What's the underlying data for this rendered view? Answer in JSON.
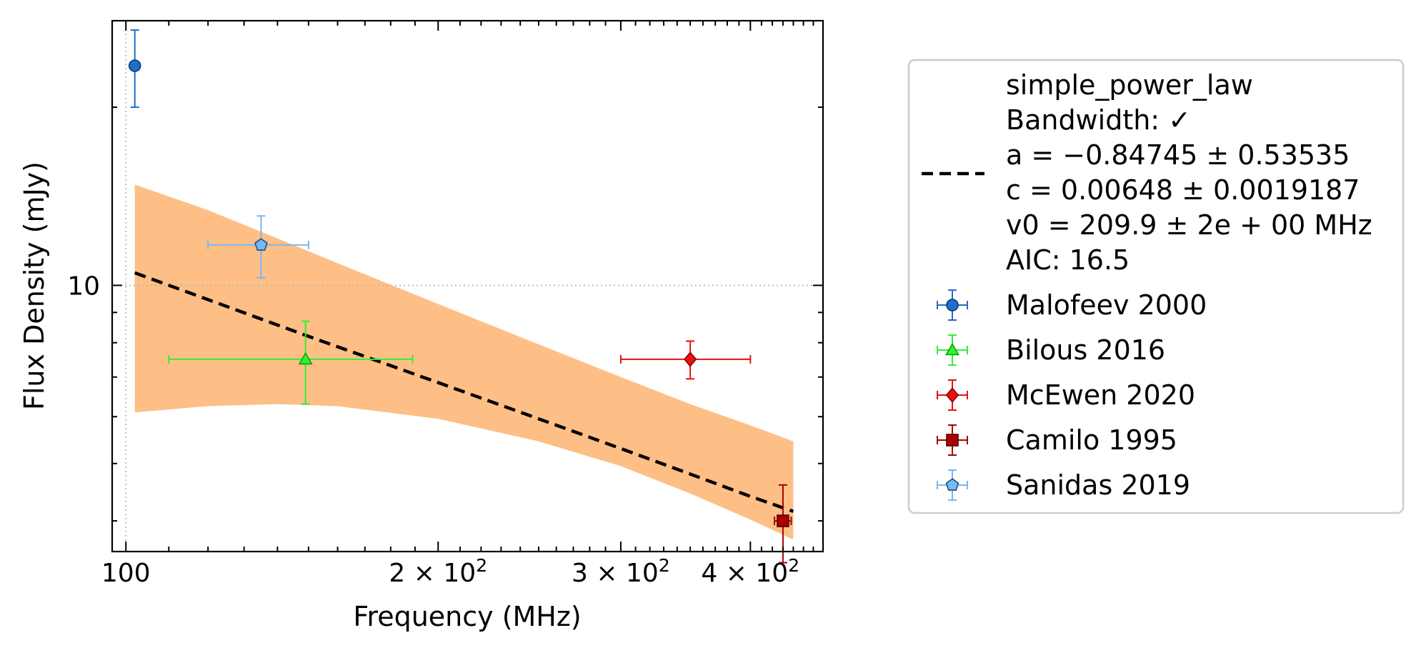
{
  "chart_data": {
    "type": "scatter",
    "xlabel": "Frequency (MHz)",
    "ylabel": "Flux Density (mJy)",
    "xscale": "log",
    "yscale": "log",
    "xlim": [
      97,
      470
    ],
    "ylim": [
      3.55,
      28
    ],
    "grid": "dotted reference lines at x=100, y=10",
    "legend_position": "right, outside plot",
    "x_ticks": [
      {
        "value": 100,
        "label": "100"
      },
      {
        "value": 200,
        "label": "2 × 10²"
      },
      {
        "value": 300,
        "label": "3 × 10²"
      },
      {
        "value": 400,
        "label": "4 × 10²"
      }
    ],
    "y_ticks": [
      {
        "value": 10,
        "label": "10"
      }
    ],
    "fit": {
      "model": "simple_power_law",
      "legend_lines": [
        "simple_power_law",
        "Bandwidth: ✓",
        "a = −0.84745 ± 0.53535",
        "c = 0.00648 ± 0.0019187",
        "v0 = 209.9 ± 2e + 00 MHz",
        "AIC: 16.5"
      ],
      "a": -0.84745,
      "a_err": 0.53535,
      "c": 0.00648,
      "c_err": 0.0019187,
      "v0": 209.9,
      "line_color": "#000000",
      "line_x": [
        102,
        150,
        200,
        250,
        300,
        350,
        400,
        440
      ],
      "line_y": [
        10.5,
        8.2,
        6.85,
        5.95,
        5.3,
        4.8,
        4.4,
        4.15
      ],
      "band_color": "#fdbf86",
      "band_x": [
        102,
        120,
        140,
        160,
        200,
        250,
        300,
        350,
        400,
        440
      ],
      "band_upper": [
        14.8,
        13.4,
        12.0,
        10.9,
        9.3,
        7.95,
        7.0,
        6.3,
        5.8,
        5.45
      ],
      "band_lower": [
        6.1,
        6.25,
        6.3,
        6.25,
        5.95,
        5.45,
        4.95,
        4.45,
        4.02,
        3.72
      ]
    },
    "series": [
      {
        "name": "Malofeev 2000",
        "marker": "circle",
        "color": "#1f6fc8",
        "edge": "#0a3a78",
        "points": [
          {
            "x": 102,
            "y": 23.5,
            "yerr_low": 3.5,
            "yerr_high": 3.5,
            "xerr_low": 0,
            "xerr_high": 0
          }
        ]
      },
      {
        "name": "Bilous 2016",
        "marker": "triangle",
        "color": "#33ee33",
        "edge": "#00aa00",
        "points": [
          {
            "x": 149,
            "y": 7.5,
            "yerr_low": 1.2,
            "yerr_high": 1.2,
            "xerr_low": 39,
            "xerr_high": 40
          }
        ]
      },
      {
        "name": "McEwen 2020",
        "marker": "diamond",
        "color": "#e81010",
        "edge": "#8a0000",
        "points": [
          {
            "x": 350,
            "y": 7.5,
            "yerr_low": 0.55,
            "yerr_high": 0.55,
            "xerr_low": 50,
            "xerr_high": 50
          }
        ]
      },
      {
        "name": "Camilo 1995",
        "marker": "square",
        "color": "#aa0000",
        "edge": "#5a0000",
        "points": [
          {
            "x": 430,
            "y": 4.0,
            "yerr_low": 0.6,
            "yerr_high": 0.6,
            "xerr_low": 8,
            "xerr_high": 8
          }
        ]
      },
      {
        "name": "Sanidas 2019",
        "marker": "pentagon",
        "color": "#7ab8f0",
        "edge": "#1a4f8a",
        "points": [
          {
            "x": 135,
            "y": 11.7,
            "yerr_low": 1.4,
            "yerr_high": 1.4,
            "xerr_low": 15,
            "xerr_high": 15
          }
        ]
      }
    ]
  }
}
